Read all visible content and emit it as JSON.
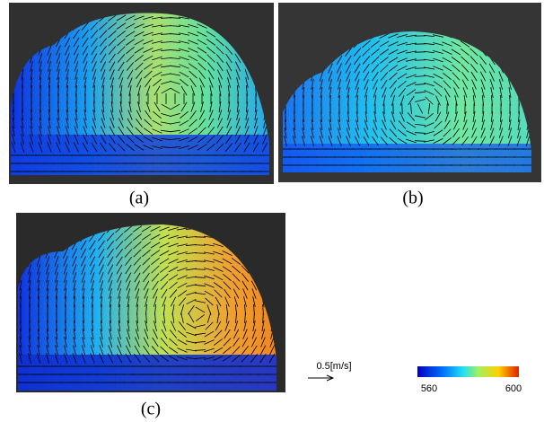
{
  "panels": [
    {
      "label": "(a)"
    },
    {
      "label": "(b)"
    },
    {
      "label": "(c)"
    }
  ],
  "scale": {
    "label": "0.5[m/s]"
  },
  "colorbar": {
    "min_label": "560",
    "max_label": "600"
  }
}
